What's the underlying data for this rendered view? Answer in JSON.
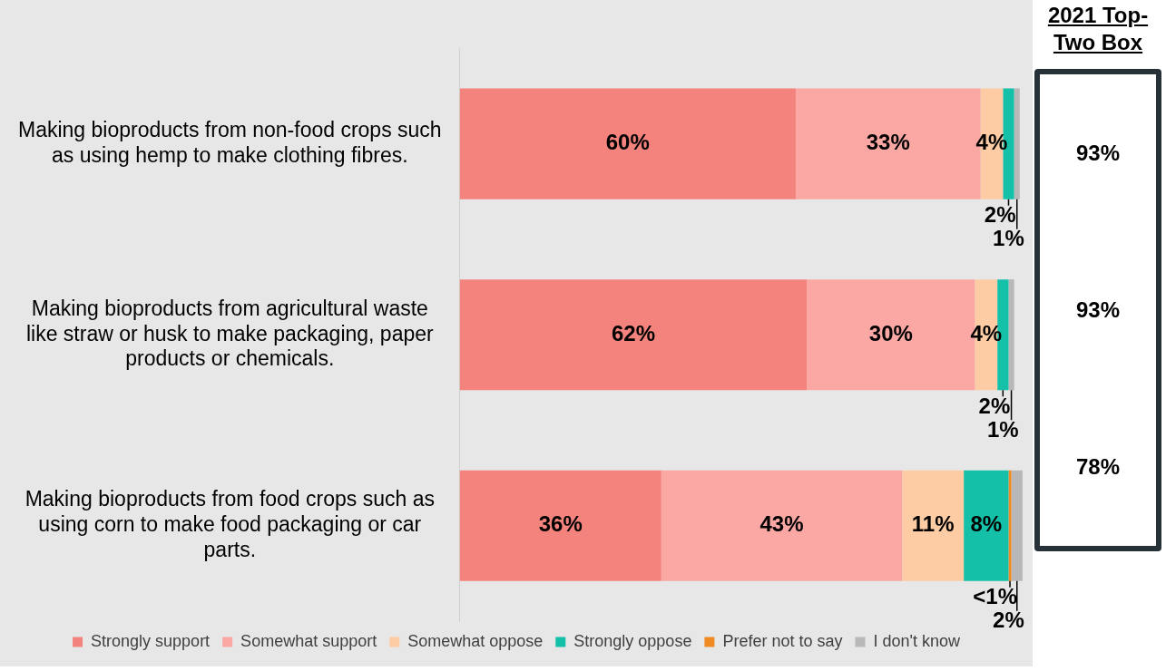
{
  "chart_data": [
    {
      "type": "bar",
      "orientation": "horizontal",
      "stacked": true,
      "categories": [
        "Making bioproducts from non-food crops such as using hemp to make clothing fibres.",
        "Making bioproducts from agricultural waste like straw or husk to make packaging, paper products or chemicals.",
        "Making bioproducts from food crops such as using corn to make food packaging or car parts."
      ],
      "series": [
        {
          "name": "Strongly support",
          "color": "#f4837d",
          "values": [
            60,
            62,
            36
          ],
          "value_labels": [
            "60%",
            "62%",
            "36%"
          ]
        },
        {
          "name": "Somewhat support",
          "color": "#fba8a5",
          "values": [
            33,
            30,
            43
          ],
          "value_labels": [
            "33%",
            "30%",
            "43%"
          ]
        },
        {
          "name": "Somewhat oppose",
          "color": "#fdcca4",
          "values": [
            4,
            4,
            11
          ],
          "value_labels": [
            "4%",
            "4%",
            "11%"
          ]
        },
        {
          "name": "Strongly oppose",
          "color": "#14c0a8",
          "values": [
            2,
            2,
            8
          ],
          "value_labels": [
            "2%",
            "2%",
            "8%"
          ]
        },
        {
          "name": "Prefer not to say",
          "color": "#f08a24",
          "values": [
            null,
            null,
            0.5
          ],
          "value_labels": [
            null,
            null,
            "<1%"
          ]
        },
        {
          "name": "I don't know",
          "color": "#b8b8b8",
          "values": [
            1,
            1,
            2
          ],
          "value_labels": [
            "1%",
            "1%",
            "2%"
          ]
        }
      ],
      "xlim": [
        0,
        101
      ],
      "tick_labels": "y",
      "legend": "bottom"
    },
    {
      "type": "other",
      "title": "2021 Top-Two Box",
      "annotations": [
        "93%",
        "93%",
        "78%"
      ]
    }
  ]
}
